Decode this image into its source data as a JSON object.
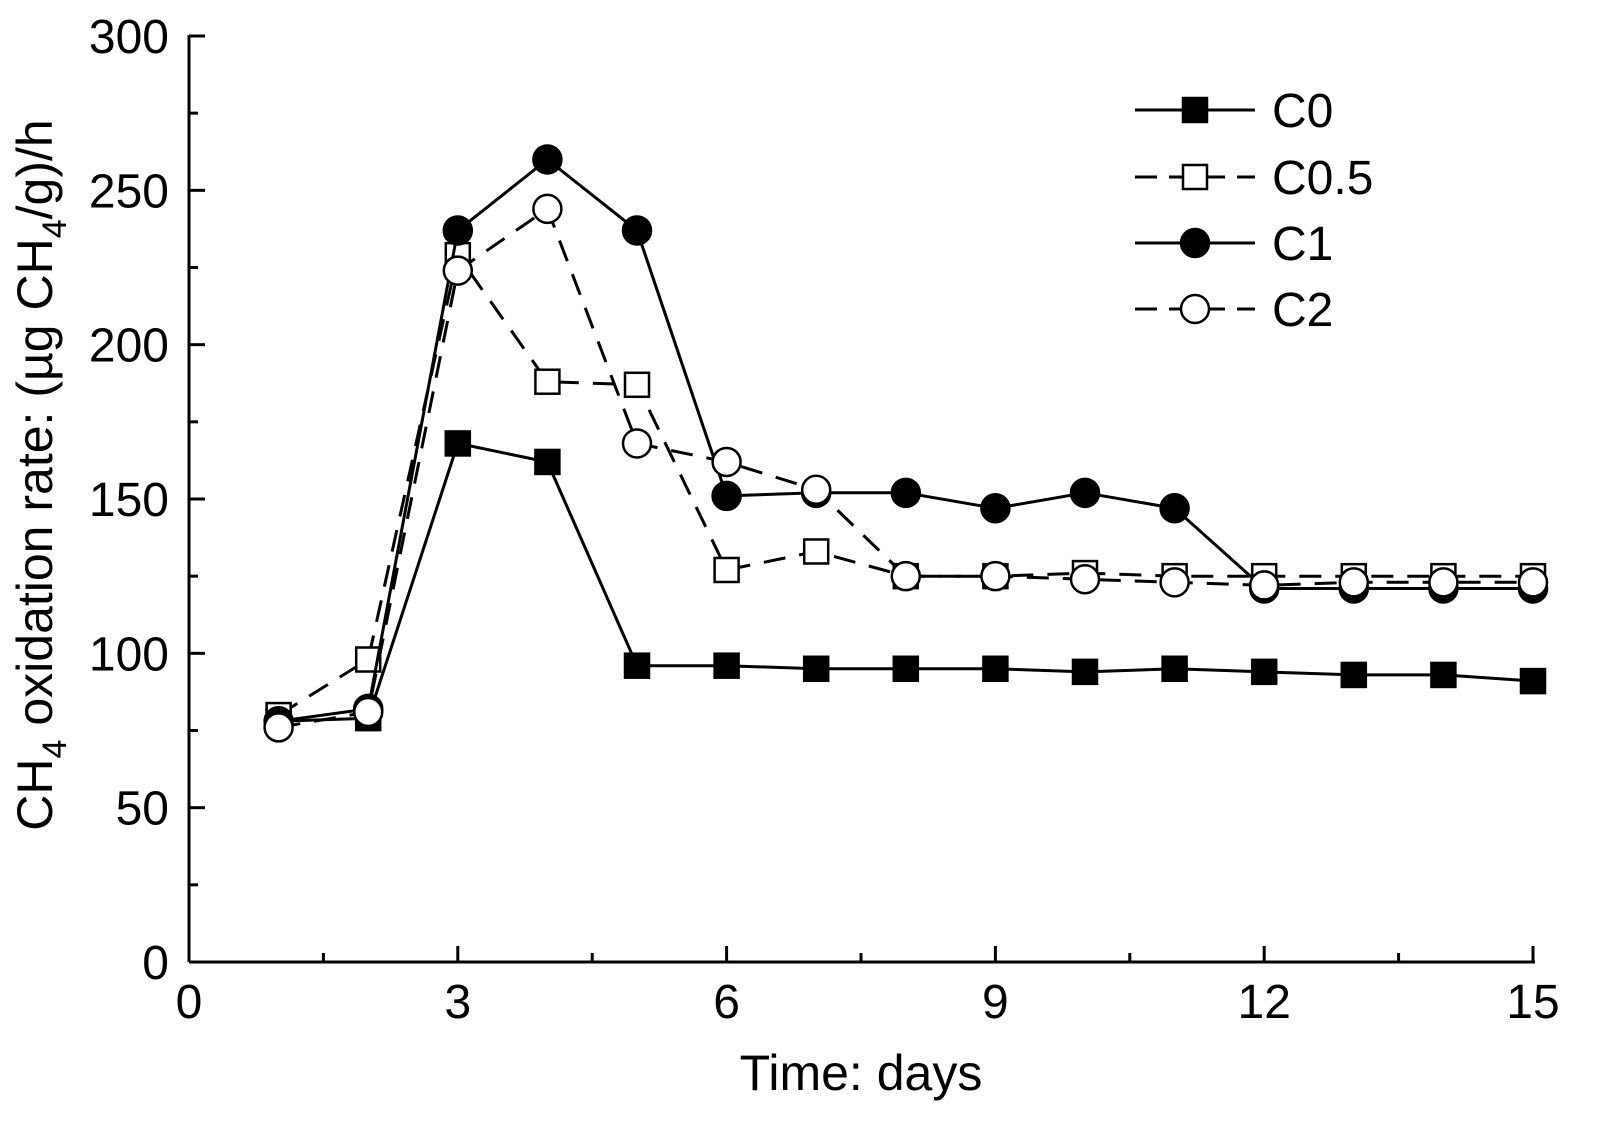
{
  "chart_data": {
    "type": "line",
    "title": "",
    "xlabel": "Time: days",
    "ylabel": {
      "prefix": "CH",
      "sub1": "4",
      "middle": " oxidation rate: (µg CH",
      "sub2": "4",
      "suffix": "/g)/h"
    },
    "xlim": [
      0,
      15
    ],
    "ylim": [
      0,
      300
    ],
    "xticks": [
      0,
      3,
      6,
      9,
      12,
      15
    ],
    "xticks_minor": [
      1.5,
      4.5,
      7.5,
      10.5,
      13.5
    ],
    "yticks": [
      0,
      50,
      100,
      150,
      200,
      250,
      300
    ],
    "xtick_labels": [
      "0",
      "3",
      "6",
      "9",
      "12",
      "15"
    ],
    "ytick_labels": [
      "0",
      "50",
      "100",
      "150",
      "200",
      "250",
      "300"
    ],
    "legend_position": "top-right",
    "grid": false,
    "x": [
      1,
      2,
      3,
      4,
      5,
      6,
      7,
      8,
      9,
      10,
      11,
      12,
      13,
      14,
      15
    ],
    "series": [
      {
        "name": "C0",
        "marker": "square",
        "filled": true,
        "line": "solid",
        "values": [
          78,
          79,
          168,
          162,
          96,
          96,
          95,
          95,
          95,
          94,
          95,
          94,
          93,
          93,
          91
        ]
      },
      {
        "name": "C0.5",
        "marker": "square",
        "filled": false,
        "line": "dashed",
        "values": [
          80,
          98,
          229,
          188,
          187,
          127,
          133,
          125,
          125,
          126,
          125,
          125,
          125,
          125,
          125
        ]
      },
      {
        "name": "C1",
        "marker": "circle",
        "filled": true,
        "line": "solid",
        "values": [
          78,
          82,
          237,
          260,
          237,
          151,
          152,
          152,
          147,
          152,
          147,
          121,
          121,
          121,
          121
        ]
      },
      {
        "name": "C2",
        "marker": "circle",
        "filled": false,
        "line": "dashed",
        "values": [
          76,
          81,
          224,
          244,
          168,
          162,
          153,
          125,
          125,
          124,
          123,
          122,
          123,
          123,
          123
        ]
      }
    ]
  },
  "colors": {
    "ink": "#000000",
    "background": "#ffffff"
  }
}
